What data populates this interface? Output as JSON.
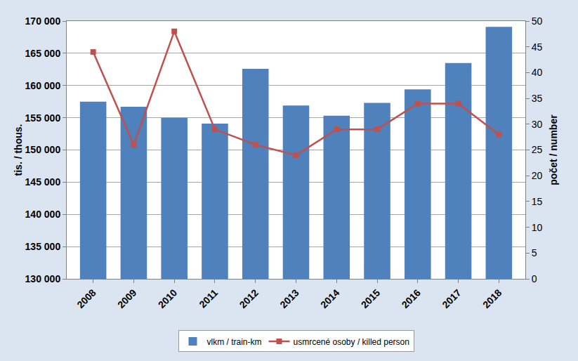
{
  "chart_data": {
    "type": "bar",
    "categories": [
      "2008",
      "2009",
      "2010",
      "2011",
      "2012",
      "2013",
      "2014",
      "2015",
      "2016",
      "2017",
      "2018"
    ],
    "series": [
      {
        "name": "vlkm / train-km",
        "type": "bar",
        "color": "#4f81bd",
        "values": [
          157500,
          156700,
          155000,
          154100,
          162600,
          156900,
          155300,
          157300,
          159400,
          163500,
          169100
        ]
      },
      {
        "name": "usmrcené osoby / killed person",
        "type": "line",
        "axis": "y2",
        "color": "#c0504d",
        "marker": "square",
        "values": [
          44,
          26,
          48,
          29,
          26,
          24,
          29,
          29,
          34,
          34,
          28
        ]
      }
    ],
    "y_label": "tis. / thous.",
    "y2_label": "počet / number",
    "ylim": [
      130000,
      170000
    ],
    "yticks": [
      {
        "value": 130000,
        "label": "130 000"
      },
      {
        "value": 135000,
        "label": "135 000"
      },
      {
        "value": 140000,
        "label": "140 000"
      },
      {
        "value": 145000,
        "label": "145 000"
      },
      {
        "value": 150000,
        "label": "150 000"
      },
      {
        "value": 155000,
        "label": "155 000"
      },
      {
        "value": 160000,
        "label": "160 000"
      },
      {
        "value": 165000,
        "label": "165 000"
      },
      {
        "value": 170000,
        "label": "170 000"
      }
    ],
    "y2lim": [
      0,
      50
    ],
    "y2ticks": [
      0,
      5,
      10,
      15,
      20,
      25,
      30,
      35,
      40,
      45,
      50
    ],
    "grid": true,
    "legend": "bottom"
  }
}
